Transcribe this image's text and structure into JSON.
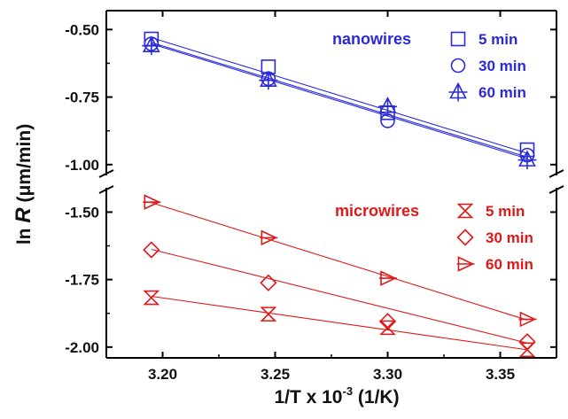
{
  "chart_data": {
    "type": "scatter",
    "axis_break": true,
    "xlabel": "1/T x 10",
    "xlabel_superscript": "-3",
    "xlabel_unit": "(1/K)",
    "ylabel_prefix": "ln",
    "ylabel_symbol": "R",
    "ylabel_unit": "(μm/min)",
    "xlim": [
      3.175,
      3.375
    ],
    "x_ticks": [
      3.2,
      3.25,
      3.3,
      3.35
    ],
    "x_tick_labels": [
      "3.20",
      "3.25",
      "3.30",
      "3.35"
    ],
    "x": [
      3.195,
      3.247,
      3.3,
      3.362
    ],
    "panels": {
      "top": {
        "ylim": [
          -1.04,
          -0.43
        ],
        "y_ticks": [
          -0.5,
          -0.75,
          -1.0
        ],
        "y_tick_labels": [
          "-0.50",
          "-0.75",
          "-1.00"
        ]
      },
      "bottom": {
        "ylim": [
          -2.04,
          -1.41
        ],
        "y_ticks": [
          -1.5,
          -1.75,
          -2.0
        ],
        "y_tick_labels": [
          "-1.50",
          "-1.75",
          "-2.00"
        ]
      }
    },
    "groups": [
      {
        "title": "nanowires",
        "panel": "top",
        "color": "#2a2ad8",
        "series": [
          {
            "name": "5 min",
            "marker": "square",
            "values": [
              -0.535,
              -0.638,
              -0.808,
              -0.945
            ],
            "fit": [
              -0.53,
              -0.958
            ]
          },
          {
            "name": "30 min",
            "marker": "circle",
            "values": [
              -0.553,
              -0.682,
              -0.838,
              -0.965
            ],
            "fit": [
              -0.548,
              -0.972
            ]
          },
          {
            "name": "60 min",
            "marker": "triangle-up",
            "values": [
              -0.56,
              -0.688,
              -0.785,
              -0.983
            ],
            "fit": [
              -0.553,
              -0.978
            ]
          }
        ]
      },
      {
        "title": "microwires",
        "panel": "bottom",
        "color": "#e01818",
        "series": [
          {
            "name": "5 min",
            "marker": "bowtie",
            "values": [
              -1.817,
              -1.878,
              -1.928,
              -2.01
            ],
            "fit": [
              -1.812,
              -2.01
            ]
          },
          {
            "name": "30 min",
            "marker": "diamond",
            "values": [
              -1.64,
              -1.762,
              -1.905,
              -1.98
            ],
            "fit": [
              -1.638,
              -1.985
            ]
          },
          {
            "name": "60 min",
            "marker": "triangle-right",
            "values": [
              -1.463,
              -1.595,
              -1.745,
              -1.897
            ],
            "fit": [
              -1.465,
              -1.9
            ]
          }
        ]
      }
    ]
  }
}
